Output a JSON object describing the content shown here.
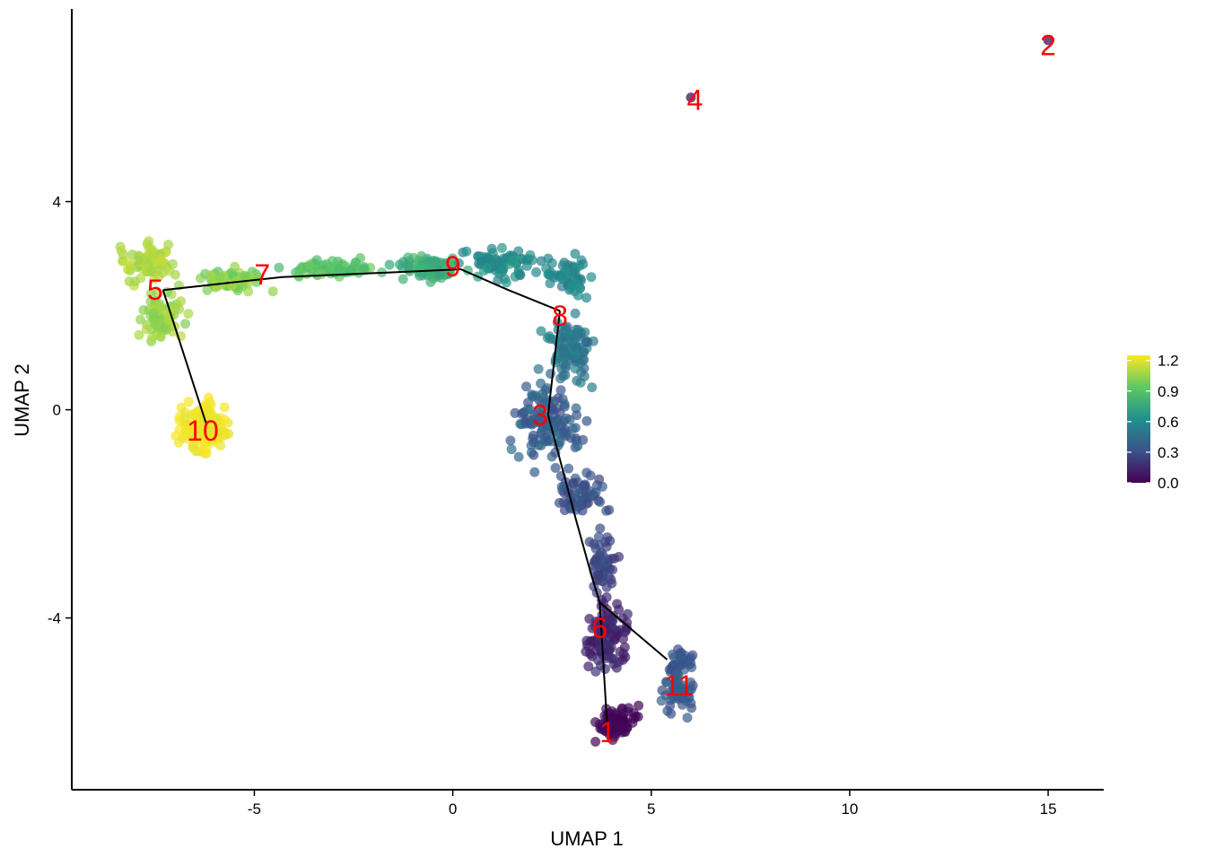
{
  "chart_data": {
    "type": "scatter",
    "title": "",
    "xlabel": "UMAP 1",
    "ylabel": "UMAP 2",
    "xlim": [
      -9.6,
      16.4
    ],
    "ylim": [
      -7.3,
      7.7
    ],
    "x_ticks": [
      -5,
      0,
      5,
      10,
      15
    ],
    "y_ticks": [
      -4,
      0,
      4
    ],
    "x_tick_labels": [
      "-5",
      "0",
      "5",
      "10",
      "15"
    ],
    "y_tick_labels": [
      "-4",
      "0",
      "4"
    ],
    "grid": false,
    "legend_position": "right",
    "colorbar": {
      "range": [
        0.0,
        1.25
      ],
      "ticks": [
        0.0,
        0.3,
        0.6,
        0.9,
        1.2
      ],
      "tick_labels": [
        "0.0",
        "0.3",
        "0.6",
        "0.9",
        "1.2"
      ],
      "colormap": [
        "#440154",
        "#3b528b",
        "#21908c",
        "#5dc863",
        "#fde725"
      ]
    },
    "point_regions": [
      {
        "cx": -7.7,
        "cy": 2.8,
        "rx": 1.0,
        "ry": 0.55,
        "n": 90,
        "val": [
          1.05,
          1.15
        ]
      },
      {
        "cx": -7.3,
        "cy": 1.8,
        "rx": 0.8,
        "ry": 0.75,
        "n": 80,
        "val": [
          1.0,
          1.12
        ]
      },
      {
        "cx": -5.6,
        "cy": 2.5,
        "rx": 1.2,
        "ry": 0.35,
        "n": 60,
        "val": [
          0.95,
          1.08
        ]
      },
      {
        "cx": -3.0,
        "cy": 2.7,
        "rx": 1.5,
        "ry": 0.25,
        "n": 70,
        "val": [
          0.85,
          0.98
        ]
      },
      {
        "cx": -0.6,
        "cy": 2.75,
        "rx": 1.2,
        "ry": 0.35,
        "n": 80,
        "val": [
          0.7,
          0.85
        ]
      },
      {
        "cx": 1.2,
        "cy": 2.8,
        "rx": 1.2,
        "ry": 0.4,
        "n": 80,
        "val": [
          0.55,
          0.7
        ]
      },
      {
        "cx": 2.9,
        "cy": 2.6,
        "rx": 0.8,
        "ry": 0.7,
        "n": 60,
        "val": [
          0.5,
          0.65
        ]
      },
      {
        "cx": -6.3,
        "cy": -0.35,
        "rx": 0.9,
        "ry": 0.7,
        "n": 130,
        "val": [
          1.2,
          1.25
        ]
      },
      {
        "cx": 3.0,
        "cy": 1.1,
        "rx": 1.0,
        "ry": 0.9,
        "n": 90,
        "val": [
          0.42,
          0.58
        ]
      },
      {
        "cx": 2.4,
        "cy": -0.3,
        "rx": 1.2,
        "ry": 1.0,
        "n": 120,
        "val": [
          0.3,
          0.45
        ]
      },
      {
        "cx": 3.2,
        "cy": -1.6,
        "rx": 0.9,
        "ry": 0.6,
        "n": 60,
        "val": [
          0.25,
          0.38
        ]
      },
      {
        "cx": 3.8,
        "cy": -2.9,
        "rx": 0.5,
        "ry": 0.8,
        "n": 50,
        "val": [
          0.2,
          0.32
        ]
      },
      {
        "cx": 3.9,
        "cy": -4.4,
        "rx": 0.8,
        "ry": 0.9,
        "n": 110,
        "val": [
          0.08,
          0.2
        ]
      },
      {
        "cx": 4.1,
        "cy": -6.0,
        "rx": 0.7,
        "ry": 0.45,
        "n": 90,
        "val": [
          0.0,
          0.06
        ]
      },
      {
        "cx": 5.7,
        "cy": -5.2,
        "rx": 0.6,
        "ry": 1.0,
        "n": 80,
        "val": [
          0.3,
          0.4
        ]
      }
    ],
    "single_points": [
      {
        "x": 6.0,
        "y": 6.0,
        "val": 0.05
      },
      {
        "x": 15.0,
        "y": 7.1,
        "val": 0.05
      }
    ],
    "trajectory": {
      "color": "#000000",
      "segments": [
        [
          [
            -6.2,
            -0.3
          ],
          [
            -7.3,
            2.3
          ]
        ],
        [
          [
            -7.3,
            2.3
          ],
          [
            -4.3,
            2.55
          ],
          [
            -1.2,
            2.65
          ],
          [
            0.2,
            2.7
          ]
        ],
        [
          [
            0.2,
            2.7
          ],
          [
            1.4,
            2.3
          ],
          [
            2.7,
            1.9
          ]
        ],
        [
          [
            2.7,
            1.9
          ],
          [
            2.4,
            -0.1
          ]
        ],
        [
          [
            2.4,
            -0.1
          ],
          [
            3.1,
            -2.1
          ],
          [
            3.5,
            -3.2
          ],
          [
            3.7,
            -3.7
          ]
        ],
        [
          [
            3.7,
            -3.7
          ],
          [
            5.4,
            -4.8
          ]
        ],
        [
          [
            3.7,
            -3.7
          ],
          [
            3.9,
            -6.2
          ]
        ]
      ]
    },
    "cluster_labels": [
      {
        "text": "1",
        "x": 3.9,
        "y": -6.2
      },
      {
        "text": "2",
        "x": 15.0,
        "y": 7.0
      },
      {
        "text": "3",
        "x": 2.2,
        "y": -0.1
      },
      {
        "text": "4",
        "x": 6.1,
        "y": 5.95
      },
      {
        "text": "5",
        "x": -7.5,
        "y": 2.3
      },
      {
        "text": "6",
        "x": 3.7,
        "y": -4.2
      },
      {
        "text": "7",
        "x": -4.8,
        "y": 2.6
      },
      {
        "text": "8",
        "x": 2.7,
        "y": 1.8
      },
      {
        "text": "9",
        "x": 0.0,
        "y": 2.75
      },
      {
        "text": "10",
        "x": -6.3,
        "y": -0.4
      },
      {
        "text": "11",
        "x": 5.7,
        "y": -5.3
      }
    ]
  }
}
